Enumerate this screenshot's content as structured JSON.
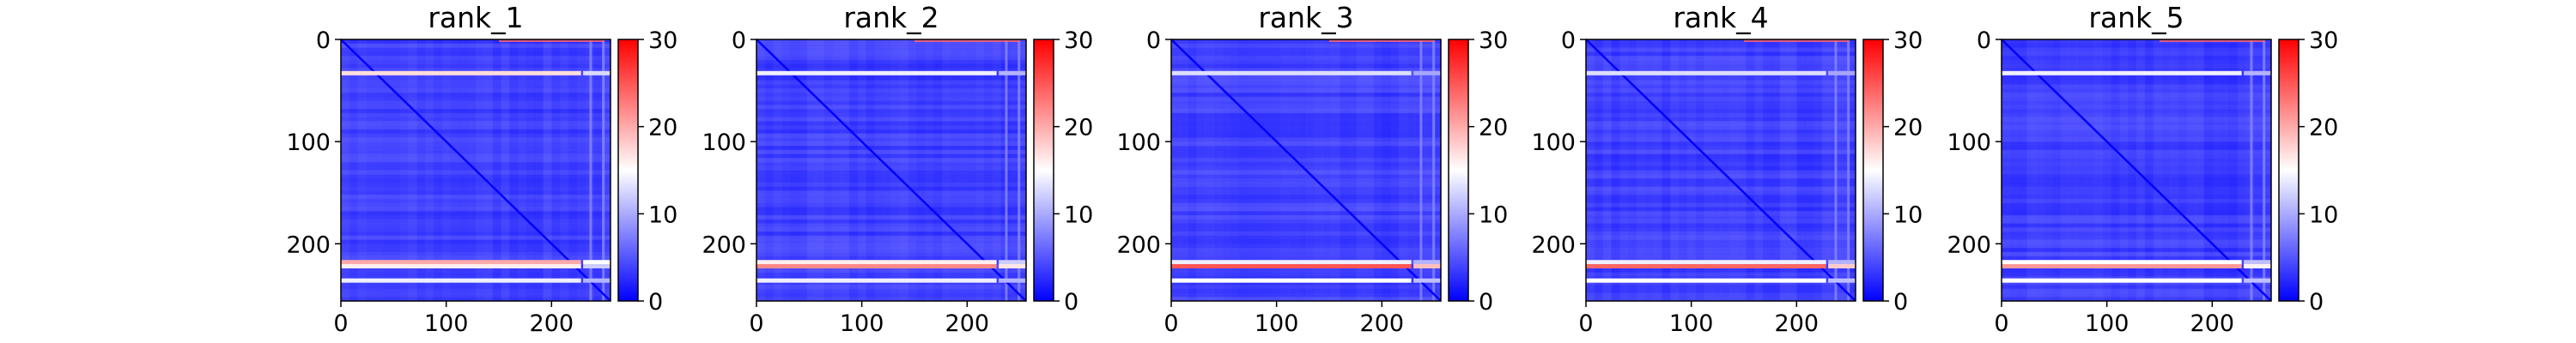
{
  "chart_data": [
    {
      "type": "heatmap",
      "title": "rank_1",
      "xticks": [
        "0",
        "100",
        "200"
      ],
      "yticks": [
        "0",
        "100",
        "200"
      ],
      "colorbar_ticks": [
        "0",
        "10",
        "20",
        "30"
      ],
      "xlim": [
        0,
        256
      ],
      "ylim": [
        256,
        0
      ],
      "clim": [
        0,
        30
      ],
      "colormap": [
        "#0000ff",
        "#ffffff",
        "#ff0000"
      ],
      "bands": [
        [
          33,
          17
        ],
        [
          218,
          20
        ],
        [
          222,
          16
        ],
        [
          236,
          14
        ]
      ]
    },
    {
      "type": "heatmap",
      "title": "rank_2",
      "xticks": [
        "0",
        "100",
        "200"
      ],
      "yticks": [
        "0",
        "100",
        "200"
      ],
      "colorbar_ticks": [
        "0",
        "10",
        "20",
        "30"
      ],
      "xlim": [
        0,
        256
      ],
      "ylim": [
        256,
        0
      ],
      "clim": [
        0,
        30
      ],
      "colormap": [
        "#0000ff",
        "#ffffff",
        "#ff0000"
      ],
      "bands": [
        [
          33,
          14
        ],
        [
          218,
          16
        ],
        [
          222,
          22
        ],
        [
          236,
          14
        ]
      ]
    },
    {
      "type": "heatmap",
      "title": "rank_3",
      "xticks": [
        "0",
        "100",
        "200"
      ],
      "yticks": [
        "0",
        "100",
        "200"
      ],
      "colorbar_ticks": [
        "0",
        "10",
        "20",
        "30"
      ],
      "xlim": [
        0,
        256
      ],
      "ylim": [
        256,
        0
      ],
      "clim": [
        0,
        30
      ],
      "colormap": [
        "#0000ff",
        "#ffffff",
        "#ff0000"
      ],
      "bands": [
        [
          33,
          13
        ],
        [
          218,
          14
        ],
        [
          222,
          25
        ],
        [
          236,
          15
        ]
      ]
    },
    {
      "type": "heatmap",
      "title": "rank_4",
      "xticks": [
        "0",
        "100",
        "200"
      ],
      "yticks": [
        "0",
        "100",
        "200"
      ],
      "colorbar_ticks": [
        "0",
        "10",
        "20",
        "30"
      ],
      "xlim": [
        0,
        256
      ],
      "ylim": [
        256,
        0
      ],
      "clim": [
        0,
        30
      ],
      "colormap": [
        "#0000ff",
        "#ffffff",
        "#ff0000"
      ],
      "bands": [
        [
          33,
          13
        ],
        [
          218,
          14
        ],
        [
          222,
          24
        ],
        [
          236,
          15
        ]
      ]
    },
    {
      "type": "heatmap",
      "title": "rank_5",
      "xticks": [
        "0",
        "100",
        "200"
      ],
      "yticks": [
        "0",
        "100",
        "200"
      ],
      "colorbar_ticks": [
        "0",
        "10",
        "20",
        "30"
      ],
      "xlim": [
        0,
        256
      ],
      "ylim": [
        256,
        0
      ],
      "clim": [
        0,
        30
      ],
      "colormap": [
        "#0000ff",
        "#ffffff",
        "#ff0000"
      ],
      "bands": [
        [
          33,
          14
        ],
        [
          218,
          15
        ],
        [
          222,
          21
        ],
        [
          236,
          15
        ]
      ]
    }
  ]
}
